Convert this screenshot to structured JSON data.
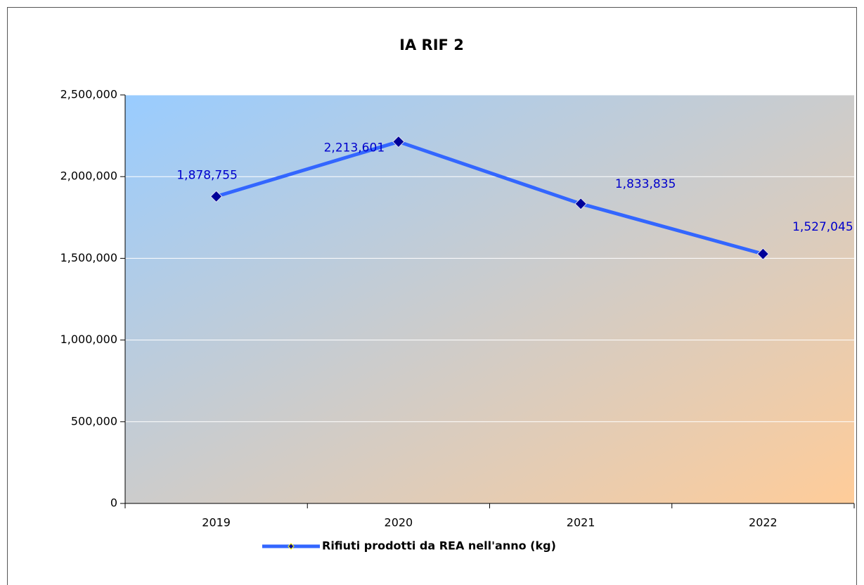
{
  "chart_data": {
    "type": "line",
    "title": "IA RIF 2",
    "categories": [
      "2019",
      "2020",
      "2021",
      "2022"
    ],
    "series": [
      {
        "name": "Rifiuti prodotti da REA nell'anno (kg)",
        "color": "#3366ff",
        "marker_color": "#000099",
        "values": [
          1878755,
          2213601,
          1833835,
          1527045
        ],
        "value_labels": [
          "1,878,755",
          "2,213,601",
          "1,833,835",
          "1,527,045"
        ]
      }
    ],
    "ylim": [
      0,
      2500000
    ],
    "yticks": [
      0,
      {
        "value": 500000,
        "label": "500,000"
      },
      {
        "value": 1000000,
        "label": "1,000,000"
      },
      {
        "value": 1500000,
        "label": "1,500,000"
      },
      {
        "value": 2000000,
        "label": "2,000,000"
      },
      {
        "value": 2500000,
        "label": "2,500,000"
      }
    ],
    "grid": true,
    "legend": "bottom"
  }
}
